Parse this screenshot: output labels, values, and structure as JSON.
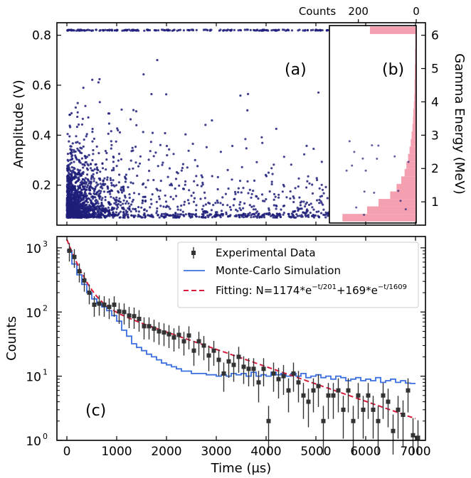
{
  "chart_data": [
    {
      "panel": "a",
      "type": "scatter",
      "panel_label": "(a)",
      "ylabel": "Amplitude (V)",
      "xlim": [
        -200,
        7200
      ],
      "ylim": [
        0.04,
        0.85
      ],
      "yticks": [
        0.2,
        0.4,
        0.6,
        0.8
      ],
      "ytick_labels": [
        "0.2",
        "0.4",
        "0.6",
        "0.8"
      ],
      "right_ylabel": "Gamma Energy (MeV)",
      "right_yticks": [
        1,
        2,
        3,
        4,
        5,
        6
      ],
      "right_ytick_labels": [
        "1",
        "2",
        "3",
        "4",
        "5",
        "6"
      ],
      "energy_per_volt": 7.5,
      "marker_color": "#1f1f7a",
      "saturation_amplitude": 0.82,
      "density_profile": {
        "dense_region_end_us": 1700,
        "tail_end_us": 6900,
        "amplitude_floor": 0.07
      }
    },
    {
      "panel": "b",
      "type": "bar",
      "orientation": "horizontal",
      "panel_label": "(b)",
      "xlabel": "Counts",
      "xticks": [
        200,
        0
      ],
      "xtick_labels": [
        "200",
        "0"
      ],
      "xaxis_reversed": true,
      "xlim": [
        0,
        300
      ],
      "bar_color": "#f4a0b0",
      "bin_width_V": 0.03,
      "bins_amplitude_V": [
        0.07,
        0.1,
        0.13,
        0.16,
        0.19,
        0.22,
        0.25,
        0.28,
        0.31,
        0.34,
        0.37,
        0.4,
        0.43,
        0.46,
        0.49,
        0.52,
        0.55,
        0.58,
        0.61,
        0.64,
        0.67,
        0.7,
        0.73,
        0.76,
        0.79,
        0.82
      ],
      "counts": [
        255,
        170,
        130,
        90,
        68,
        52,
        40,
        34,
        28,
        23,
        19,
        16,
        13,
        11,
        10,
        8,
        7,
        6,
        6,
        5,
        5,
        4,
        4,
        3,
        3,
        160
      ]
    },
    {
      "panel": "c",
      "type": "line",
      "panel_label": "(c)",
      "xlabel": "Time (µs)",
      "ylabel": "Counts",
      "yscale": "log",
      "xlim": [
        -200,
        7200
      ],
      "ylim": [
        1,
        1500
      ],
      "xticks": [
        0,
        1000,
        2000,
        3000,
        4000,
        5000,
        6000,
        7000
      ],
      "xtick_labels": [
        "0",
        "1000",
        "2000",
        "3000",
        "4000",
        "5000",
        "6000",
        "7000"
      ],
      "yticks": [
        1,
        10,
        100,
        1000
      ],
      "ytick_labels": [
        "10",
        "10",
        "10",
        "10"
      ],
      "ytick_exponents": [
        "0",
        "1",
        "2",
        "3"
      ],
      "legend": {
        "placement": "top-right",
        "entries": [
          {
            "label": "Experimental Data",
            "color": "#333333"
          },
          {
            "label": "Monte-Carlo Simulation",
            "color": "#3b6fe0"
          },
          {
            "label_prefix": "Fitting: N=1174*e",
            "exp1": "−t/201",
            "label_middle": "+169*e",
            "exp2": "−t/1609",
            "color": "#d81b3c"
          }
        ]
      },
      "experimental_data": {
        "x": [
          50,
          150,
          250,
          350,
          450,
          550,
          650,
          750,
          850,
          950,
          1050,
          1150,
          1250,
          1350,
          1450,
          1550,
          1650,
          1750,
          1850,
          1950,
          2050,
          2150,
          2250,
          2350,
          2450,
          2550,
          2650,
          2750,
          2850,
          2950,
          3050,
          3150,
          3250,
          3350,
          3450,
          3550,
          3650,
          3750,
          3850,
          3950,
          4050,
          4150,
          4250,
          4350,
          4450,
          4550,
          4650,
          4750,
          4850,
          4950,
          5050,
          5150,
          5250,
          5350,
          5450,
          5550,
          5650,
          5750,
          5850,
          5950,
          6050,
          6150,
          6250,
          6350,
          6450,
          6550,
          6650,
          6750,
          6850,
          6950,
          7050
        ],
        "y": [
          900,
          720,
          430,
          310,
          200,
          130,
          135,
          130,
          120,
          130,
          102,
          100,
          88,
          86,
          78,
          60,
          60,
          55,
          50,
          48,
          45,
          40,
          44,
          35,
          43,
          25,
          35,
          30,
          21,
          25,
          18,
          11,
          17,
          15,
          20,
          14,
          13,
          13,
          8,
          13,
          2,
          11,
          9,
          10,
          6,
          11,
          8,
          5,
          4,
          6,
          7,
          2,
          5,
          5,
          6,
          3,
          6,
          2,
          5,
          3,
          5,
          3,
          2,
          5,
          4,
          1.4,
          3,
          2.5,
          6,
          1.2,
          1.1
        ],
        "yerr_rel": 0.3,
        "color": "#333333"
      },
      "simulation": {
        "type": "step",
        "x": [
          0,
          100,
          200,
          300,
          400,
          500,
          600,
          700,
          800,
          900,
          1000,
          1100,
          1200,
          1300,
          1400,
          1500,
          1600,
          1700,
          1800,
          1900,
          2000,
          2100,
          2200,
          2300,
          2400,
          2500,
          2600,
          2700,
          2800,
          2900,
          3000,
          3100,
          3200,
          3300,
          3400,
          3500,
          3600,
          3700,
          3800,
          3900,
          4000,
          4100,
          4200,
          4300,
          4400,
          4500,
          4600,
          4700,
          4800,
          4900,
          5000,
          5100,
          5200,
          5300,
          5400,
          5500,
          5600,
          5700,
          5800,
          5900,
          6000,
          6100,
          6200,
          6300,
          6400,
          6500,
          6600,
          6700,
          6800,
          6900
        ],
        "y": [
          900,
          560,
          380,
          270,
          200,
          160,
          135,
          120,
          105,
          88,
          72,
          52,
          42,
          32,
          28,
          25,
          22,
          20,
          18,
          16,
          15,
          14,
          13,
          12,
          12,
          11,
          11,
          11,
          10.5,
          10.5,
          10,
          10.5,
          10,
          11,
          10.5,
          11,
          10,
          11.5,
          10,
          10.5,
          10,
          11.5,
          10.5,
          11,
          10,
          11,
          10,
          11,
          9.5,
          10,
          10.5,
          9.5,
          10,
          9,
          10,
          9.5,
          8.5,
          9,
          9.5,
          8.5,
          9,
          8.5,
          9.5,
          8,
          8.5,
          9,
          8,
          8.5,
          7.8,
          7.7
        ],
        "color": "#3b6fe0"
      },
      "fit": {
        "formula": "N=1174*e^(-t/201)+169*e^(-t/1609)",
        "A1": 1174,
        "tau1": 201,
        "A2": 169,
        "tau2": 1609,
        "x_range": [
          0,
          7000
        ],
        "color": "#d81b3c",
        "style": "dashed"
      }
    }
  ]
}
